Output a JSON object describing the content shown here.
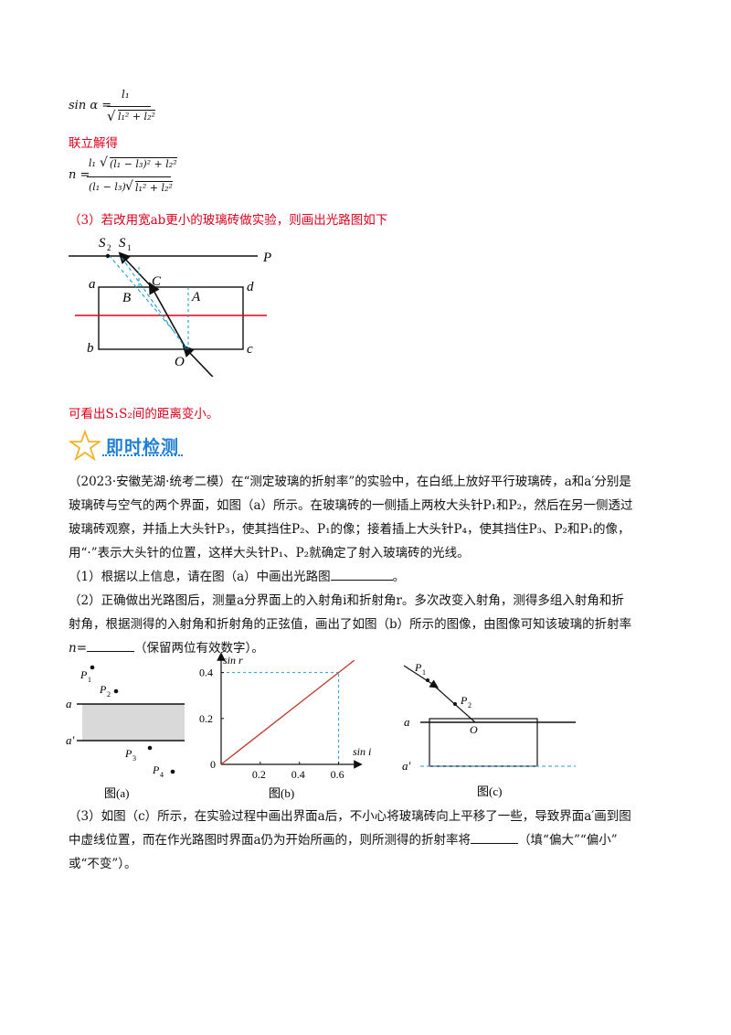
{
  "formula1": {
    "lhs": "sin α =",
    "num": "l₁",
    "den_root": "l₁² + l₂²"
  },
  "solve_label": "联立解得",
  "formula2": {
    "lhs": "n =",
    "num_a": "l₁",
    "num_root": "(l₁ − l₃)² + l₂²",
    "den_a": "(l₁ − l₃)",
    "den_root": "l₁² + l₂²"
  },
  "part3_answer": "（3）若改用宽ab更小的玻璃砖做实验，则画出光路图如下",
  "fig_top": {
    "S2": "S",
    "S2sub": "2",
    "S1": "S",
    "S1sub": "1",
    "P": "P",
    "a": "a",
    "b": "b",
    "c": "c",
    "d": "d",
    "A": "A",
    "B": "B",
    "C": "C",
    "O": "O"
  },
  "conclusion": "可看出S₁S₂间的距离变小。",
  "banner": "即时检测",
  "question": {
    "line1": "（2023·安徽芜湖·统考二模）在“测定玻璃的折射率”的实验中，在白纸上放好平行玻璃砖，a和a′分别是",
    "line2": "玻璃砖与空气的两个界面，如图（a）所示。在玻璃砖的一侧插上两枚大头针P₁和P₂，然后在另一侧透过",
    "line3": "玻璃砖观察，并插上大头针P₃，使其挡住P₂、P₁的像；接着插上大头针P₄，使其挡住P₃、P₂和P₁的像，",
    "line4": "用“·”表示大头针的位置，这样大头针P₁、P₂就确定了射入玻璃砖的光线。",
    "q1": "（1）根据以上信息，请在图（a）中画出光路图",
    "q1_end": "。",
    "q2_line1": "（2）正确做出光路图后，测量a分界面上的入射角i和折射角r。多次改变入射角，测得多组入射角和折",
    "q2_line2": "射角，根据测得的入射角和折射角的正弦值，画出了如图（b）所示的图像，由图像可知该玻璃的折射率",
    "q2_line3_pre": "n=",
    "q2_line3_post": "（保留两位有效数字）。",
    "q3_line1": "（3）如图（c）所示，在实验过程中画出界面a后，不小心将玻璃砖向上平移了一些，导致界面a′画到图",
    "q3_line2_pre": "中虚线位置，而在作光路图时界面a仍为开始所画的，则所测得的折射率将",
    "q3_line2_post": "（填“偏大”“偏小”",
    "q3_line3": "或“不变”）。"
  },
  "fig_a": {
    "caption": "图(a)",
    "P1": "P",
    "P2": "P",
    "P3": "P",
    "P4": "P",
    "s1": "1",
    "s2": "2",
    "s3": "3",
    "s4": "4",
    "a": "a",
    "a2": "a′"
  },
  "fig_c": {
    "caption": "图(c)",
    "P1": "P",
    "P2": "P",
    "s1": "1",
    "s2": "2",
    "a": "a",
    "a2": "a′",
    "O": "O"
  },
  "chart_data": {
    "type": "line",
    "caption": "图(b)",
    "xlabel": "sin i",
    "ylabel": "sin r",
    "xticks": [
      "0.2",
      "0.4",
      "0.6"
    ],
    "yticks": [
      "0.2",
      "0.4"
    ],
    "origin": "0",
    "x": [
      0,
      0.6
    ],
    "y": [
      0,
      0.4
    ],
    "xlim": [
      0,
      0.7
    ],
    "ylim": [
      0,
      0.47
    ],
    "line_color": "#c0392b",
    "guide_color": "#1a9fd8"
  },
  "colors": {
    "red": "#e0001b",
    "blue": "#1e7fd6",
    "cyan": "#1a9fd8",
    "grey": "#d9d9d9"
  }
}
